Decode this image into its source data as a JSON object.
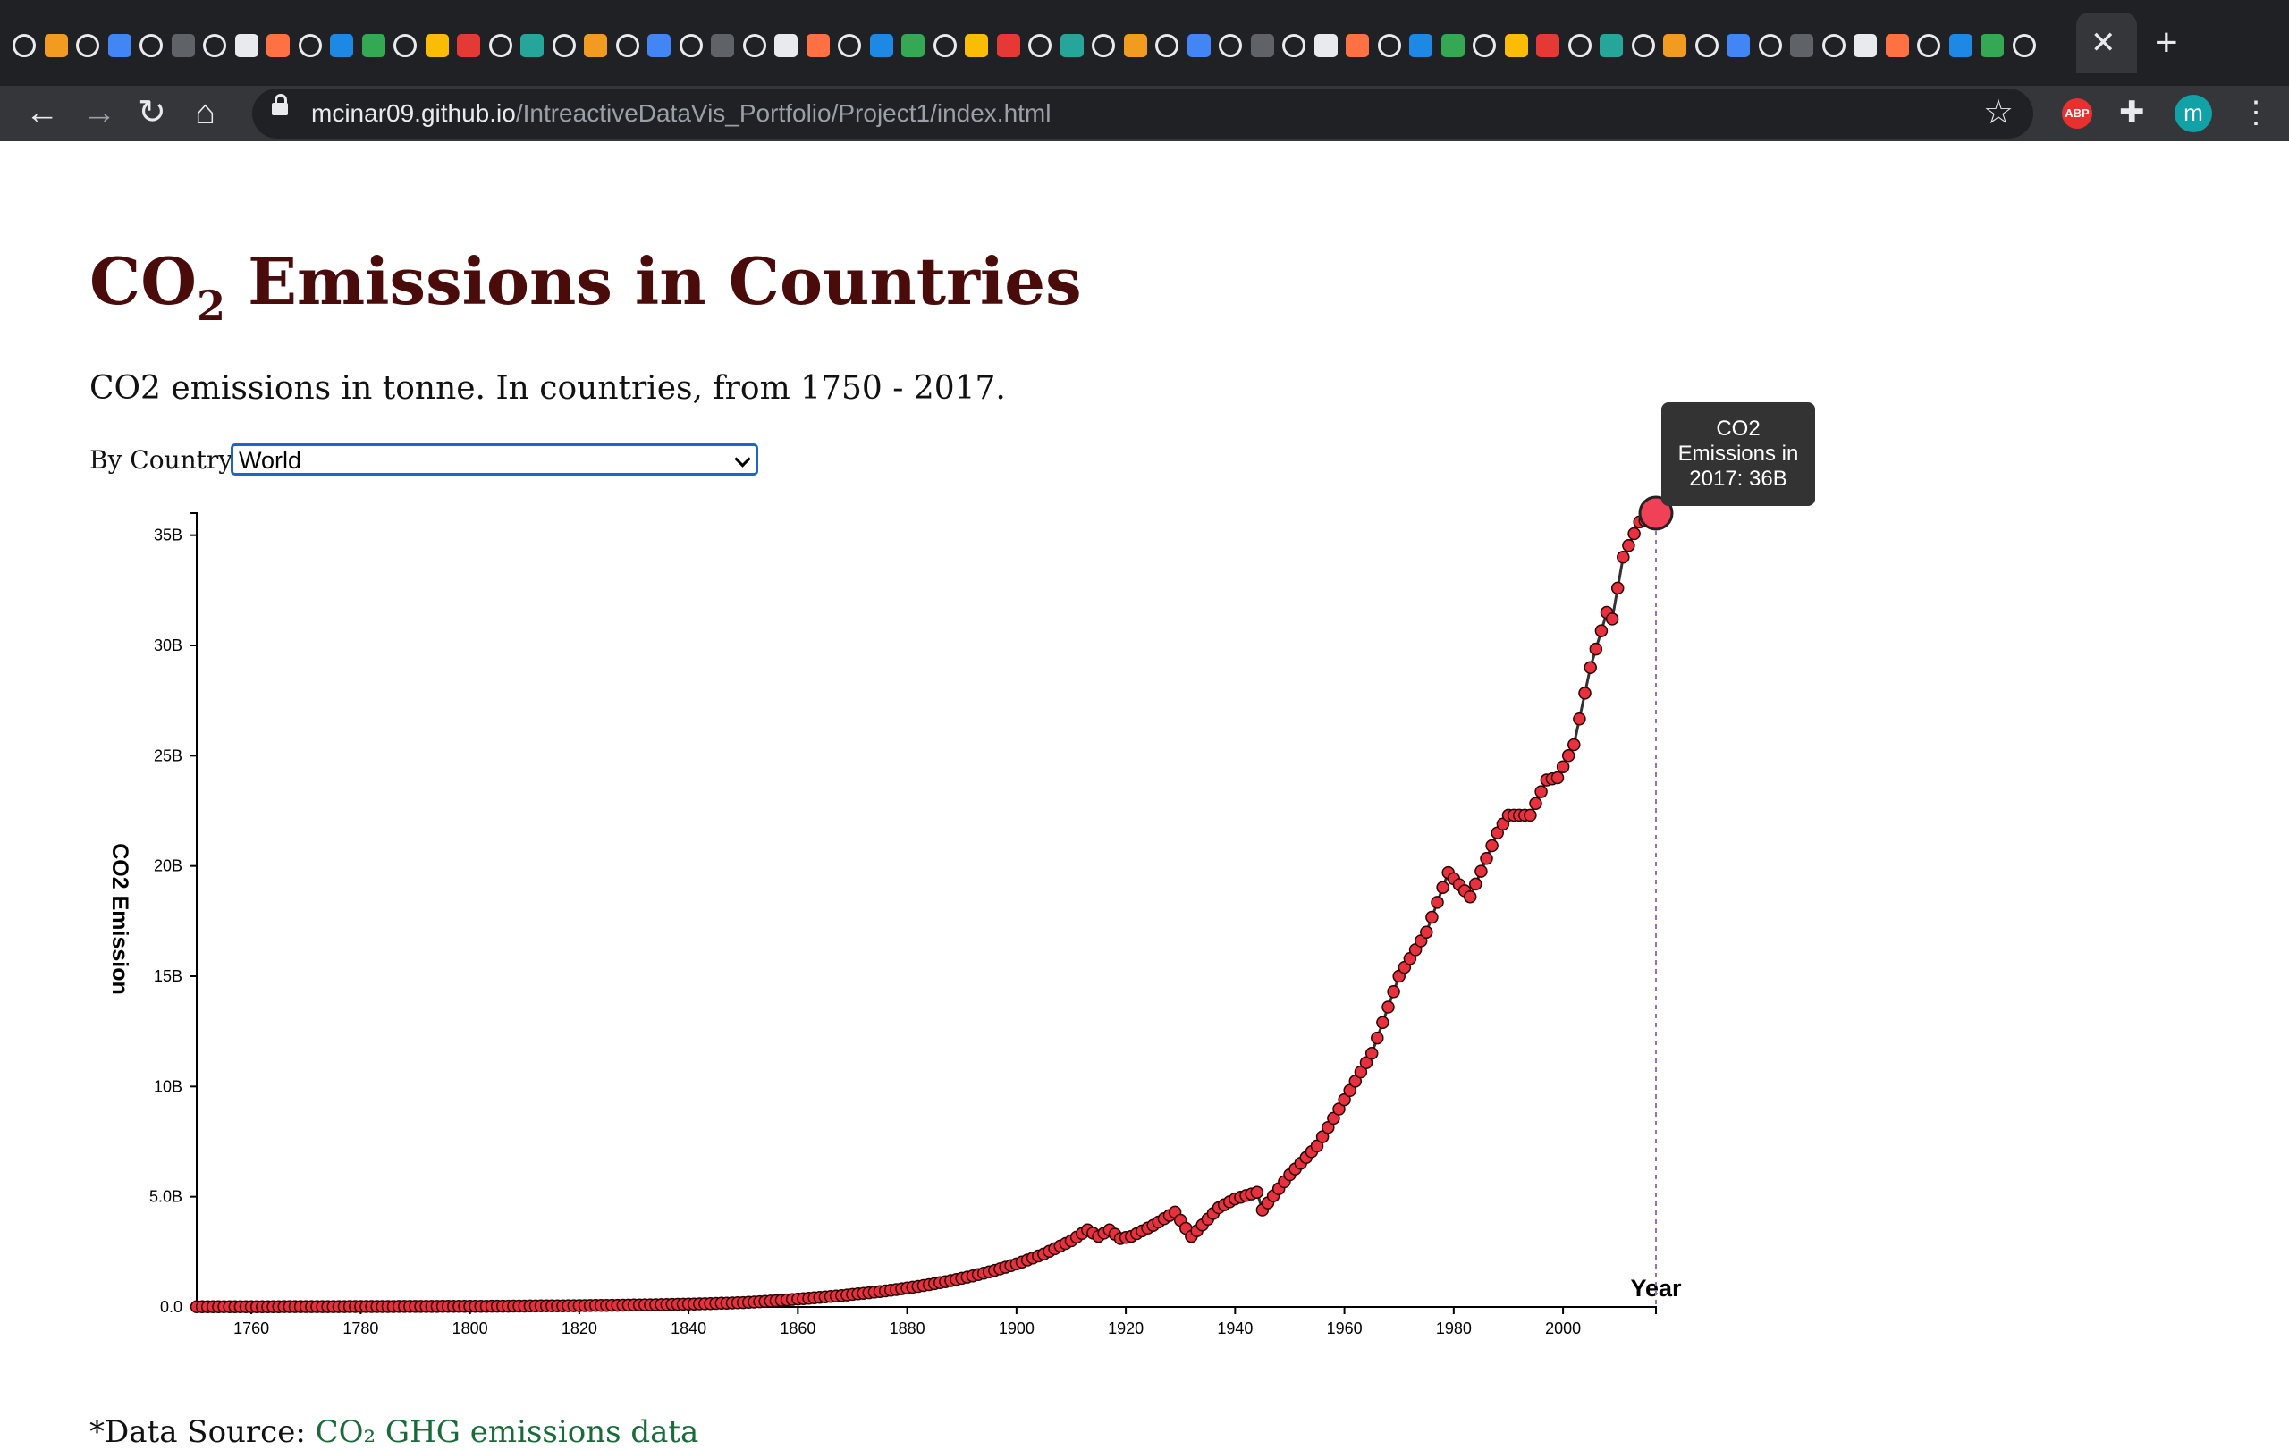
{
  "browser": {
    "url_host": "mcinar09.github.io",
    "url_path": "/IntreactiveDataVis_Portfolio/Project1/index.html",
    "tab_close_glyph": "✕",
    "new_tab_glyph": "+",
    "back_glyph": "←",
    "forward_glyph": "→",
    "reload_glyph": "↻",
    "home_glyph": "⌂",
    "star_glyph": "☆",
    "abp_label": "ABP",
    "extensions_glyph": "✚",
    "profile_initial": "m",
    "menu_glyph": "⋮",
    "favicon_count": 64
  },
  "page": {
    "title_main": "CO",
    "title_sub": "2",
    "title_rest": " Emissions in Countries",
    "subtitle": "CO2 emissions in tonne. In countries, from 1750 - 2017.",
    "selector_label": "By Country:",
    "selector_value": "World",
    "footer_prefix": "*Data Source: ",
    "footer_link": "CO₂ GHG emissions data"
  },
  "tooltip": {
    "line1": "CO2",
    "line2": "Emissions in",
    "line3": "2017: 36B"
  },
  "colors": {
    "point_fill": "#e8313f",
    "point_stroke": "#2a0000",
    "line": "#333333",
    "title": "#4a0b0b",
    "highlight_point": "#f04157",
    "guide_line": "#9a6fc0"
  },
  "chart_data": {
    "type": "scatter",
    "title": "",
    "xlabel": "Year",
    "ylabel": "CO2 Emission",
    "xlim": [
      1750,
      2017
    ],
    "ylim": [
      0,
      36000000000
    ],
    "x_ticks": [
      1760,
      1780,
      1800,
      1820,
      1840,
      1860,
      1880,
      1900,
      1920,
      1940,
      1960,
      1980,
      2000
    ],
    "x_tick_labels": [
      "1760",
      "1780",
      "1800",
      "1820",
      "1840",
      "1860",
      "1880",
      "1900",
      "1920",
      "1940",
      "1960",
      "1980",
      "2000"
    ],
    "y_ticks": [
      0,
      5000000000,
      10000000000,
      15000000000,
      20000000000,
      25000000000,
      30000000000,
      35000000000
    ],
    "y_tick_labels": [
      "0.0",
      "5.0B",
      "10B",
      "15B",
      "20B",
      "25B",
      "30B",
      "35B"
    ],
    "highlight": {
      "year": 2017,
      "value": 36000000000
    },
    "anchors": [
      {
        "year": 1750,
        "value": 10000000
      },
      {
        "year": 1800,
        "value": 30000000
      },
      {
        "year": 1820,
        "value": 60000000
      },
      {
        "year": 1840,
        "value": 130000000
      },
      {
        "year": 1850,
        "value": 200000000
      },
      {
        "year": 1860,
        "value": 360000000
      },
      {
        "year": 1870,
        "value": 570000000
      },
      {
        "year": 1880,
        "value": 860000000
      },
      {
        "year": 1890,
        "value": 1300000000
      },
      {
        "year": 1900,
        "value": 1950000000
      },
      {
        "year": 1905,
        "value": 2400000000
      },
      {
        "year": 1910,
        "value": 3000000000
      },
      {
        "year": 1913,
        "value": 3500000000
      },
      {
        "year": 1915,
        "value": 3200000000
      },
      {
        "year": 1917,
        "value": 3500000000
      },
      {
        "year": 1919,
        "value": 3100000000
      },
      {
        "year": 1921,
        "value": 3200000000
      },
      {
        "year": 1925,
        "value": 3700000000
      },
      {
        "year": 1929,
        "value": 4300000000
      },
      {
        "year": 1932,
        "value": 3200000000
      },
      {
        "year": 1937,
        "value": 4500000000
      },
      {
        "year": 1940,
        "value": 4900000000
      },
      {
        "year": 1944,
        "value": 5200000000
      },
      {
        "year": 1945,
        "value": 4400000000
      },
      {
        "year": 1950,
        "value": 6000000000
      },
      {
        "year": 1955,
        "value": 7300000000
      },
      {
        "year": 1960,
        "value": 9400000000
      },
      {
        "year": 1965,
        "value": 11500000000
      },
      {
        "year": 1970,
        "value": 15000000000
      },
      {
        "year": 1975,
        "value": 17000000000
      },
      {
        "year": 1979,
        "value": 19700000000
      },
      {
        "year": 1983,
        "value": 18600000000
      },
      {
        "year": 1988,
        "value": 21500000000
      },
      {
        "year": 1990,
        "value": 22300000000
      },
      {
        "year": 1994,
        "value": 22300000000
      },
      {
        "year": 1997,
        "value": 23900000000
      },
      {
        "year": 1999,
        "value": 24000000000
      },
      {
        "year": 2002,
        "value": 25500000000
      },
      {
        "year": 2005,
        "value": 29000000000
      },
      {
        "year": 2008,
        "value": 31500000000
      },
      {
        "year": 2009,
        "value": 31200000000
      },
      {
        "year": 2011,
        "value": 34000000000
      },
      {
        "year": 2014,
        "value": 35600000000
      },
      {
        "year": 2016,
        "value": 35700000000
      },
      {
        "year": 2017,
        "value": 36000000000
      }
    ]
  }
}
